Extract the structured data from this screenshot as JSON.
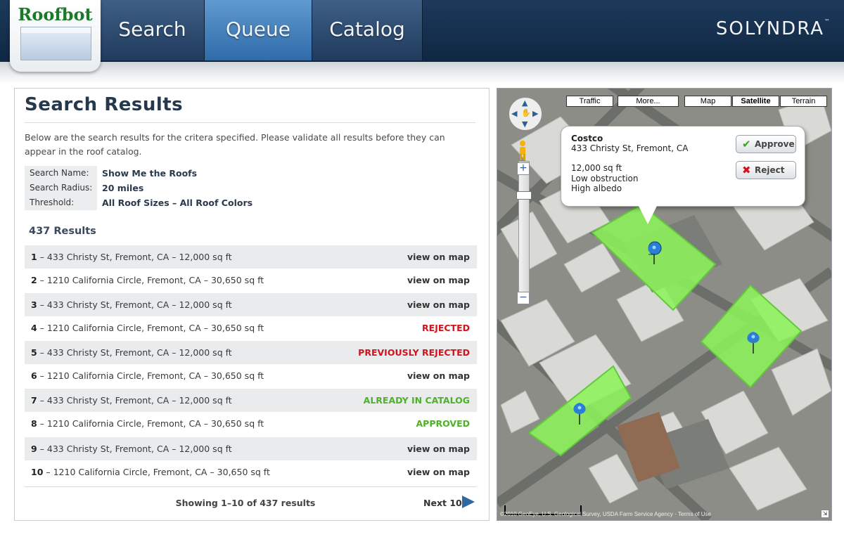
{
  "header": {
    "logo": "Roofbot",
    "nav": [
      "Search",
      "Queue",
      "Catalog"
    ],
    "brand": "SOLYNDRA",
    "brand_tm": "™",
    "active_tab": "Queue"
  },
  "panel": {
    "title": "Search Results",
    "description": "Below are the search results for the critera specified. Please validate all results before they can appear in the roof catalog.",
    "params": [
      {
        "label": "Search Name:",
        "value": "Show Me the Roofs"
      },
      {
        "label": "Search Radius:",
        "value": "20 miles"
      },
      {
        "label": "Threshold:",
        "value": "All Roof Sizes – All Roof Colors"
      }
    ],
    "result_count": "437 Results",
    "results": [
      {
        "num": "1",
        "text": "433 Christy St, Fremont, CA – 12,000 sq ft",
        "action": "view on map",
        "status": "link"
      },
      {
        "num": "2",
        "text": "1210 California Circle, Fremont, CA – 30,650 sq ft",
        "action": "view on map",
        "status": "link"
      },
      {
        "num": "3",
        "text": "433 Christy St, Fremont, CA – 12,000 sq ft",
        "action": "view on map",
        "status": "link"
      },
      {
        "num": "4",
        "text": "1210 California Circle, Fremont, CA – 30,650 sq ft",
        "action": "REJECTED",
        "status": "rejected"
      },
      {
        "num": "5",
        "text": "433 Christy St, Fremont, CA – 12,000 sq ft",
        "action": "PREVIOUSLY REJECTED",
        "status": "prev"
      },
      {
        "num": "6",
        "text": "1210 California Circle, Fremont, CA – 30,650 sq ft",
        "action": "view on map",
        "status": "link"
      },
      {
        "num": "7",
        "text": "433 Christy St, Fremont, CA – 12,000 sq ft",
        "action": "ALREADY IN CATALOG",
        "status": "catalog"
      },
      {
        "num": "8",
        "text": "1210 California Circle, Fremont, CA – 30,650 sq ft",
        "action": "APPROVED",
        "status": "approved"
      },
      {
        "num": "9",
        "text": "433 Christy St, Fremont, CA – 12,000 sq ft",
        "action": "view on map",
        "status": "link"
      },
      {
        "num": "10",
        "text": "1210 California Circle, Fremont, CA – 30,650 sq ft",
        "action": "view on map",
        "status": "link"
      }
    ],
    "showing": "Showing 1–10 of 437 results",
    "next_label": "Next 10"
  },
  "map": {
    "controls": {
      "traffic": "Traffic",
      "more": "More...",
      "map": "Map",
      "satellite": "Satellite",
      "terrain": "Terrain"
    },
    "active_map_type": "Satellite",
    "bubble": {
      "name": "Costco",
      "address": "433 Christy St, Fremont, CA",
      "size": "12,000 sq ft",
      "obstruction": "Low obstruction",
      "albedo": "High albedo",
      "approve_label": "Approve",
      "reject_label": "Reject"
    },
    "attribution": "©2010 GeoEye, U.S. Geological Survey, USDA Farm Service Agency · Terms of Use",
    "colors": {
      "roof_highlight": "#8cf25a",
      "marker": "#2a7fd4"
    }
  },
  "colors": {
    "rejected": "#d4121c",
    "approved": "#4fb02a",
    "nav_active": "#4a86c0"
  }
}
